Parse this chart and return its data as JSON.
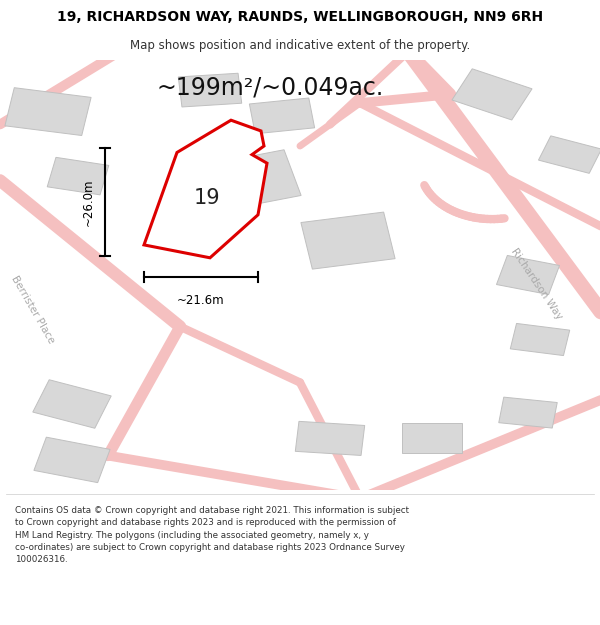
{
  "title_line1": "19, RICHARDSON WAY, RAUNDS, WELLINGBOROUGH, NN9 6RH",
  "title_line2": "Map shows position and indicative extent of the property.",
  "area_text": "~199m²/~0.049ac.",
  "label_number": "19",
  "dim_horizontal": "~21.6m",
  "dim_vertical": "~26.0m",
  "road_label_right": "Richardson Way",
  "road_label_left": "Berrister Place",
  "footer_text": "Contains OS data © Crown copyright and database right 2021. This information is subject\nto Crown copyright and database rights 2023 and is reproduced with the permission of\nHM Land Registry. The polygons (including the associated geometry, namely x, y\nco-ordinates) are subject to Crown copyright and database rights 2023 Ordnance Survey\n100026316.",
  "bg_color": "#ffffff",
  "road_color": "#f5c0c0",
  "building_color": "#d8d8d8",
  "building_edge": "#c0c0c0",
  "highlight_fill": "#ffffff",
  "highlight_border": "#dd0000",
  "dim_color": "#000000",
  "road_label_color": "#aaaaaa",
  "title_color": "#000000",
  "subtitle_color": "#333333",
  "footer_color": "#333333",
  "area_color": "#111111",
  "label_color": "#222222"
}
